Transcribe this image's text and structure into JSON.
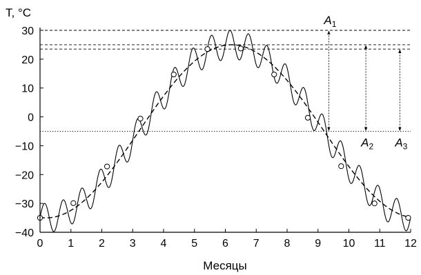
{
  "chart_data": {
    "type": "line",
    "xlabel": "Месяцы",
    "ylabel": "T, °C",
    "xlim": [
      0,
      12
    ],
    "ylim": [
      -40,
      30
    ],
    "x_ticks": [
      0,
      1,
      2,
      3,
      4,
      5,
      6,
      7,
      8,
      9,
      10,
      11,
      12
    ],
    "y_ticks": [
      30,
      20,
      10,
      0,
      -10,
      -20,
      -30,
      -40
    ],
    "grid": false,
    "series": [
      {
        "style": "dashed",
        "kind": "annual-mean",
        "x": [
          0,
          0.5,
          1,
          1.5,
          2,
          2.5,
          3,
          3.5,
          4,
          4.5,
          5,
          5.5,
          6,
          6.5,
          7,
          7.5,
          8,
          8.5,
          9,
          9.5,
          10,
          10.5,
          11,
          11.5,
          12
        ],
        "y": [
          -35,
          -34.2,
          -31.9,
          -28.3,
          -23.5,
          -17.8,
          -11.6,
          -5.0,
          1.7,
          8.1,
          13.9,
          19.0,
          22.6,
          25.0,
          24.5,
          21.6,
          16.6,
          10.2,
          2.9,
          -4.7,
          -12.6,
          -20.0,
          -26.4,
          -31.8,
          -35
        ]
      },
      {
        "style": "solid",
        "kind": "daily-oscillation",
        "amplitude": 5,
        "period_months": 0.6,
        "x": [
          0,
          0.5,
          1,
          1.5,
          2,
          2.5,
          3,
          3.5,
          4,
          4.5,
          5,
          5.5,
          6,
          6.5,
          7,
          7.5,
          8,
          8.5,
          9,
          9.5,
          10,
          10.5,
          11,
          11.5,
          12
        ],
        "y": [
          -35,
          -29.5,
          -36.8,
          -26.4,
          -28.9,
          -12.8,
          -16.1,
          -0.1,
          -3.3,
          13.0,
          8.9,
          24.0,
          17.6,
          29.7,
          19.5,
          26.1,
          11.5,
          15.0,
          -2.0,
          -0.6,
          -17.4,
          -15.0,
          -31.2,
          -26.8,
          -35
        ]
      },
      {
        "style": "markers",
        "kind": "sample-points",
        "marker": "open-circle",
        "x": [
          0,
          1.08,
          2.17,
          3.25,
          4.33,
          5.42,
          6.5,
          7.58,
          8.67,
          9.75,
          10.83,
          11.92
        ],
        "y": [
          -35,
          -29.9,
          -17.2,
          -0.6,
          14.7,
          23.5,
          23.7,
          14.7,
          -0.3,
          -17.1,
          -30.0,
          -35
        ]
      }
    ],
    "reference_lines": [
      {
        "y": 30,
        "style": "dashed"
      },
      {
        "y": 25,
        "style": "dashed"
      },
      {
        "y": 23.5,
        "style": "dashed"
      },
      {
        "y": -5,
        "style": "dotted"
      }
    ],
    "annotations": [
      {
        "label": "A",
        "sub": "1",
        "x": 9.35,
        "y_from": -5,
        "y_to": 30
      },
      {
        "label": "A",
        "sub": "2",
        "x": 10.55,
        "y_from": -5,
        "y_to": 25
      },
      {
        "label": "A",
        "sub": "3",
        "x": 11.65,
        "y_from": -5,
        "y_to": 23.5
      }
    ],
    "mean_curve": {
      "base": -5,
      "amplitude": 30,
      "peak_month": 6.2
    },
    "oscillation": {
      "amplitude": 5,
      "period_months": 0.6
    }
  }
}
